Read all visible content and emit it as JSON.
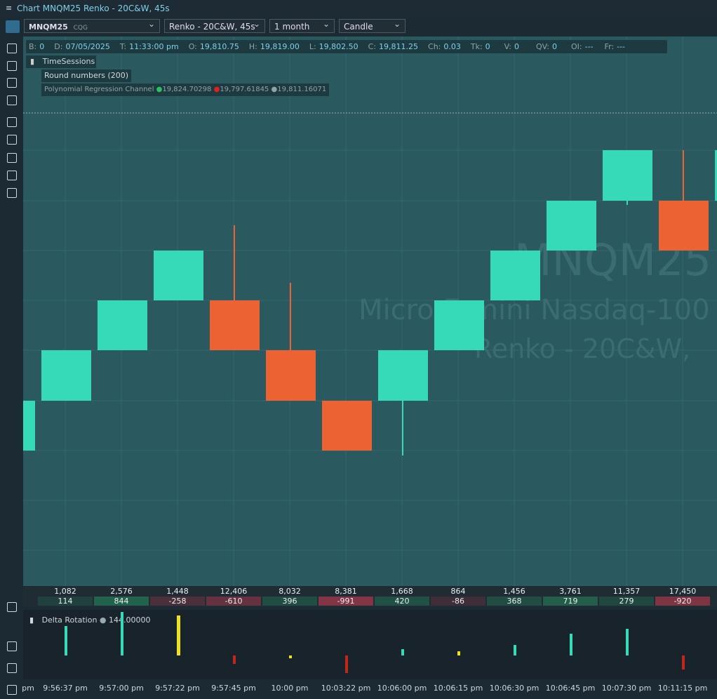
{
  "window": {
    "title": "Chart MNQM25 Renko - 20C&W, 45s"
  },
  "toolbar": {
    "symbol": "MNQM25",
    "feed": "CQG",
    "bar_type": "Renko - 20C&W, 45s",
    "period": "1 month",
    "style": "Candle"
  },
  "info_bar": [
    {
      "label": "B:",
      "value": "0"
    },
    {
      "label": "D:",
      "value": "07/05/2025"
    },
    {
      "label": "T:",
      "value": "11:33:00 pm"
    },
    {
      "label": "O:",
      "value": "19,810.75"
    },
    {
      "label": "H:",
      "value": "19,819.00"
    },
    {
      "label": "L:",
      "value": "19,802.50"
    },
    {
      "label": "C:",
      "value": "19,811.25"
    },
    {
      "label": "Ch:",
      "value": "0.03"
    },
    {
      "label": "Tk:",
      "value": "0"
    },
    {
      "label": "V:",
      "value": "0"
    },
    {
      "label": "QV:",
      "value": "0"
    },
    {
      "label": "OI:",
      "value": "---"
    },
    {
      "label": "Fr:",
      "value": "---"
    }
  ],
  "indicators": {
    "time_sessions": "TimeSessions",
    "round_numbers": "Round numbers (200)",
    "regression": {
      "name": "Polynomial Regression Channel",
      "values": [
        "19,824.70298",
        "19,797.61845",
        "19,811.16071"
      ]
    }
  },
  "watermark": [
    "MNQM25",
    "Micro E-mini Nasdaq-100",
    "Renko - 20C&W,"
  ],
  "volume_row": [
    "1,082",
    "2,576",
    "1,448",
    "12,406",
    "8,032",
    "8,381",
    "1,668",
    "864",
    "1,456",
    "3,761",
    "11,357",
    "17,450"
  ],
  "delta_row": [
    114,
    844,
    -258,
    -610,
    396,
    -991,
    420,
    -86,
    368,
    719,
    279,
    -920
  ],
  "delta_panel": {
    "name": "Delta Rotation",
    "value": "144.00000"
  },
  "time_axis": [
    "pm",
    "9:56:37 pm",
    "9:57:00 pm",
    "9:57:22 pm",
    "9:57:45 pm",
    "10:00 pm",
    "10:03:22 pm",
    "10:06:00 pm",
    "10:06:15 pm",
    "10:06:30 pm",
    "10:06:45 pm",
    "10:07:30 pm",
    "10:11:15 pm"
  ]
}
